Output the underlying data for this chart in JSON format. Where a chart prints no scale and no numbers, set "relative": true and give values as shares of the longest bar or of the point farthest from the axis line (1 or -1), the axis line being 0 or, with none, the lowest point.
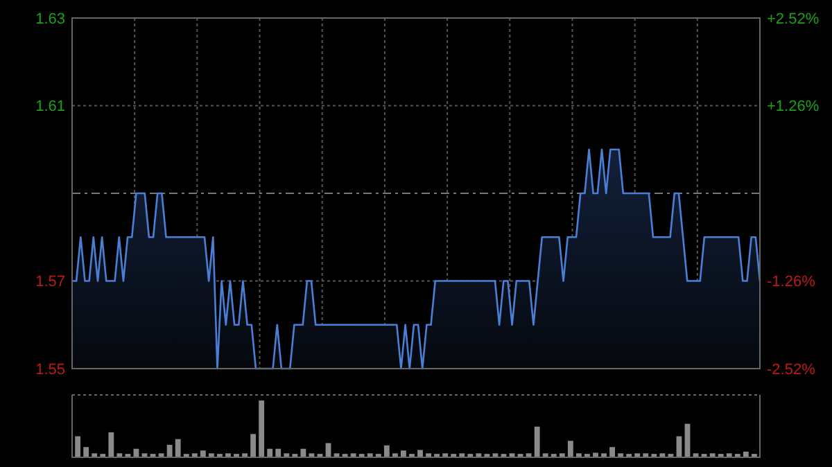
{
  "chart_data": [
    {
      "type": "area",
      "categories": [
        null,
        null,
        null,
        null,
        null,
        null,
        null,
        null,
        null,
        null,
        null,
        null,
        null,
        null,
        null,
        null,
        null,
        null,
        null,
        null,
        null,
        null,
        null,
        null,
        null,
        null,
        null,
        null,
        null,
        null,
        null,
        null,
        null,
        null,
        null,
        null,
        null,
        null,
        null,
        null,
        null,
        null,
        null,
        null,
        null,
        null,
        null,
        null,
        null,
        null,
        null,
        null,
        null,
        null,
        null,
        null,
        null,
        null,
        null,
        null,
        null,
        null,
        null,
        null,
        null,
        null,
        null,
        null,
        null,
        null,
        null,
        null,
        null,
        null,
        null,
        null,
        null,
        null,
        null,
        null,
        null,
        null,
        null,
        null,
        null,
        null,
        null,
        null,
        null,
        null,
        null,
        null,
        null,
        null,
        null,
        null,
        null,
        null,
        null,
        null,
        null,
        null,
        null,
        null,
        null,
        null,
        null,
        null,
        null,
        null,
        null,
        null,
        null,
        null,
        null,
        null,
        null,
        null,
        null,
        null,
        null,
        null,
        null,
        null,
        null,
        null,
        null,
        null,
        null,
        null,
        null,
        null,
        null,
        null,
        null,
        null,
        null,
        null,
        null,
        null,
        null,
        null,
        null,
        null,
        null,
        null,
        null,
        null,
        null,
        null,
        null,
        null,
        null,
        null,
        null,
        null,
        null,
        null,
        null,
        null,
        null,
        null
      ],
      "series": [
        {
          "color": "#4a7fd6",
          "values": [
            1.57,
            1.57,
            1.58,
            1.57,
            1.57,
            1.58,
            1.57,
            1.58,
            1.57,
            1.57,
            1.57,
            1.58,
            1.57,
            1.58,
            1.58,
            1.59,
            1.59,
            1.59,
            1.58,
            1.58,
            1.59,
            1.59,
            1.58,
            1.58,
            1.58,
            1.58,
            1.58,
            1.58,
            1.58,
            1.58,
            1.58,
            1.58,
            1.57,
            1.58,
            1.55,
            1.57,
            1.56,
            1.57,
            1.56,
            1.56,
            1.57,
            1.56,
            1.56,
            1.55,
            1.55,
            1.55,
            1.55,
            1.55,
            1.56,
            1.55,
            1.55,
            1.55,
            1.56,
            1.56,
            1.56,
            1.57,
            1.57,
            1.56,
            1.56,
            1.56,
            1.56,
            1.56,
            1.56,
            1.56,
            1.56,
            1.56,
            1.56,
            1.56,
            1.56,
            1.56,
            1.56,
            1.56,
            1.56,
            1.56,
            1.56,
            1.56,
            1.56,
            1.55,
            1.56,
            1.55,
            1.56,
            1.56,
            1.55,
            1.56,
            1.56,
            1.57,
            1.57,
            1.57,
            1.57,
            1.57,
            1.57,
            1.57,
            1.57,
            1.57,
            1.57,
            1.57,
            1.57,
            1.57,
            1.57,
            1.57,
            1.56,
            1.57,
            1.57,
            1.56,
            1.57,
            1.57,
            1.57,
            1.57,
            1.56,
            1.57,
            1.58,
            1.58,
            1.58,
            1.58,
            1.58,
            1.57,
            1.58,
            1.58,
            1.58,
            1.59,
            1.59,
            1.6,
            1.59,
            1.59,
            1.6,
            1.59,
            1.6,
            1.6,
            1.6,
            1.59,
            1.59,
            1.59,
            1.59,
            1.59,
            1.59,
            1.59,
            1.58,
            1.58,
            1.58,
            1.58,
            1.58,
            1.59,
            1.59,
            1.58,
            1.57,
            1.57,
            1.57,
            1.57,
            1.58,
            1.58,
            1.58,
            1.58,
            1.58,
            1.58,
            1.58,
            1.58,
            1.58,
            1.57,
            1.57,
            1.58,
            1.58,
            1.57
          ]
        }
      ],
      "ylim": [
        1.55,
        1.63
      ],
      "yticks": [
        1.55,
        1.57,
        1.61,
        1.63
      ],
      "y2lim": [
        -2.52,
        2.52
      ],
      "y2ticks": [
        {
          "value": -2.52,
          "label": "-2.52%"
        },
        {
          "value": -1.26,
          "label": "-1.26%"
        },
        {
          "value": 1.26,
          "label": "+1.26%"
        },
        {
          "value": 2.52,
          "label": "+2.52%"
        }
      ],
      "ref_lines": [
        {
          "axis": "y",
          "value": 1.59,
          "line_style": "dashed"
        }
      ],
      "grid": true,
      "tick_labels": "y"
    },
    {
      "type": "bar",
      "relative": true,
      "categories": [
        null,
        null,
        null,
        null,
        null,
        null,
        null,
        null,
        null,
        null,
        null,
        null,
        null,
        null,
        null,
        null,
        null,
        null,
        null,
        null,
        null,
        null,
        null,
        null,
        null,
        null,
        null,
        null,
        null,
        null,
        null,
        null,
        null,
        null,
        null,
        null,
        null,
        null,
        null,
        null,
        null,
        null,
        null,
        null,
        null,
        null,
        null,
        null,
        null,
        null,
        null,
        null,
        null,
        null,
        null,
        null,
        null,
        null,
        null,
        null,
        null,
        null,
        null,
        null,
        null,
        null,
        null,
        null,
        null,
        null,
        null,
        null,
        null,
        null,
        null,
        null,
        null,
        null,
        null,
        null,
        null,
        null
      ],
      "values": [
        0.37,
        0.18,
        0.07,
        0.06,
        0.44,
        0.07,
        0.06,
        0.15,
        0.07,
        0.06,
        0.07,
        0.22,
        0.32,
        0.06,
        0.07,
        0.12,
        0.07,
        0.06,
        0.07,
        0.06,
        0.07,
        0.41,
        1,
        0.15,
        0.15,
        0.07,
        0.06,
        0.15,
        0.07,
        0.06,
        0.25,
        0.07,
        0.06,
        0.07,
        0.06,
        0.07,
        0.06,
        0.21,
        0.07,
        0.12,
        0.06,
        0.13,
        0.07,
        0.06,
        0.07,
        0.06,
        0.07,
        0.06,
        0.07,
        0.06,
        0.07,
        0.06,
        0.07,
        0.06,
        0.07,
        0.54,
        0.07,
        0.06,
        0.07,
        0.29,
        0.07,
        0.06,
        0.08,
        0.07,
        0.18,
        0.07,
        0.06,
        0.07,
        0.07,
        0.06,
        0.07,
        0.06,
        0.37,
        0.59,
        0.07,
        0.06,
        0.07,
        0.06,
        0.07,
        0.06,
        0.1,
        0.06
      ],
      "color": "#8a8a8a",
      "tick_labels": false
    }
  ]
}
